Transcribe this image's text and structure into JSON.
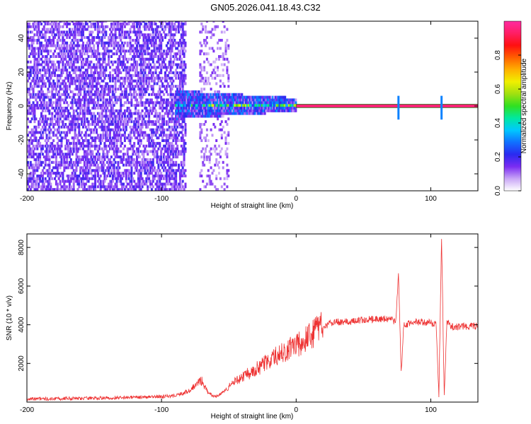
{
  "figure_title": "GN05.2026.041.18.43.C32",
  "chart_data": [
    {
      "type": "heatmap",
      "title": "GN05.2026.041.18.43.C32",
      "xlabel": "Height of straight line (km)",
      "ylabel": "Frequency (Hz)",
      "xlim": [
        -200,
        135
      ],
      "ylim": [
        -50,
        50
      ],
      "xticks": [
        -200,
        -100,
        0,
        100
      ],
      "yticks": [
        -40,
        -20,
        0,
        20,
        40
      ],
      "colorbar": {
        "label": "Normalized spectral amplitude",
        "range": [
          0,
          1
        ],
        "ticks": [
          0.0,
          0.2,
          0.4,
          0.6,
          0.8
        ],
        "colors": [
          "#ffffff",
          "#c9a6f6",
          "#7a2cf2",
          "#2a2af0",
          "#1070ff",
          "#00c8ff",
          "#00e8a0",
          "#30e020",
          "#a0e010",
          "#f0f000",
          "#ffb000",
          "#ff6000",
          "#ff1010",
          "#ff1e64",
          "#ff2aa0"
        ]
      },
      "signal": {
        "carrier_frequency_hz": 0,
        "noise_only_below_km": -90,
        "signal_onset_km": -90,
        "stable_from_km": 0,
        "spike_features_km": [
          76,
          108
        ]
      }
    },
    {
      "type": "line",
      "xlabel": "Height of straight line (km)",
      "ylabel": "SNR (10 * v/v)",
      "xlim": [
        -200,
        135
      ],
      "ylim": [
        0,
        8700
      ],
      "xticks": [
        -200,
        -100,
        0,
        100
      ],
      "yticks": [
        2000,
        4000,
        6000,
        8000
      ],
      "series": [
        {
          "name": "SNR",
          "color": "#ee3333",
          "x": [
            -200,
            -150,
            -100,
            -90,
            -80,
            -75,
            -72,
            -70,
            -68,
            -65,
            -60,
            -55,
            -50,
            -45,
            -40,
            -35,
            -30,
            -25,
            -20,
            -15,
            -10,
            -5,
            0,
            5,
            10,
            15,
            20,
            25,
            30,
            40,
            50,
            60,
            70,
            74,
            76,
            78,
            80,
            90,
            100,
            104,
            106,
            108,
            110,
            112,
            115,
            120,
            135
          ],
          "values": [
            160,
            200,
            280,
            330,
            560,
            850,
            1050,
            1100,
            800,
            450,
            280,
            450,
            800,
            1100,
            1300,
            1500,
            1700,
            1900,
            2200,
            2400,
            2600,
            2750,
            2900,
            3150,
            3400,
            3650,
            3900,
            4050,
            4150,
            4150,
            4250,
            4300,
            4300,
            4100,
            6500,
            1500,
            4000,
            4150,
            4100,
            4000,
            300,
            8600,
            300,
            4200,
            3900,
            3900,
            3950
          ]
        }
      ]
    }
  ]
}
